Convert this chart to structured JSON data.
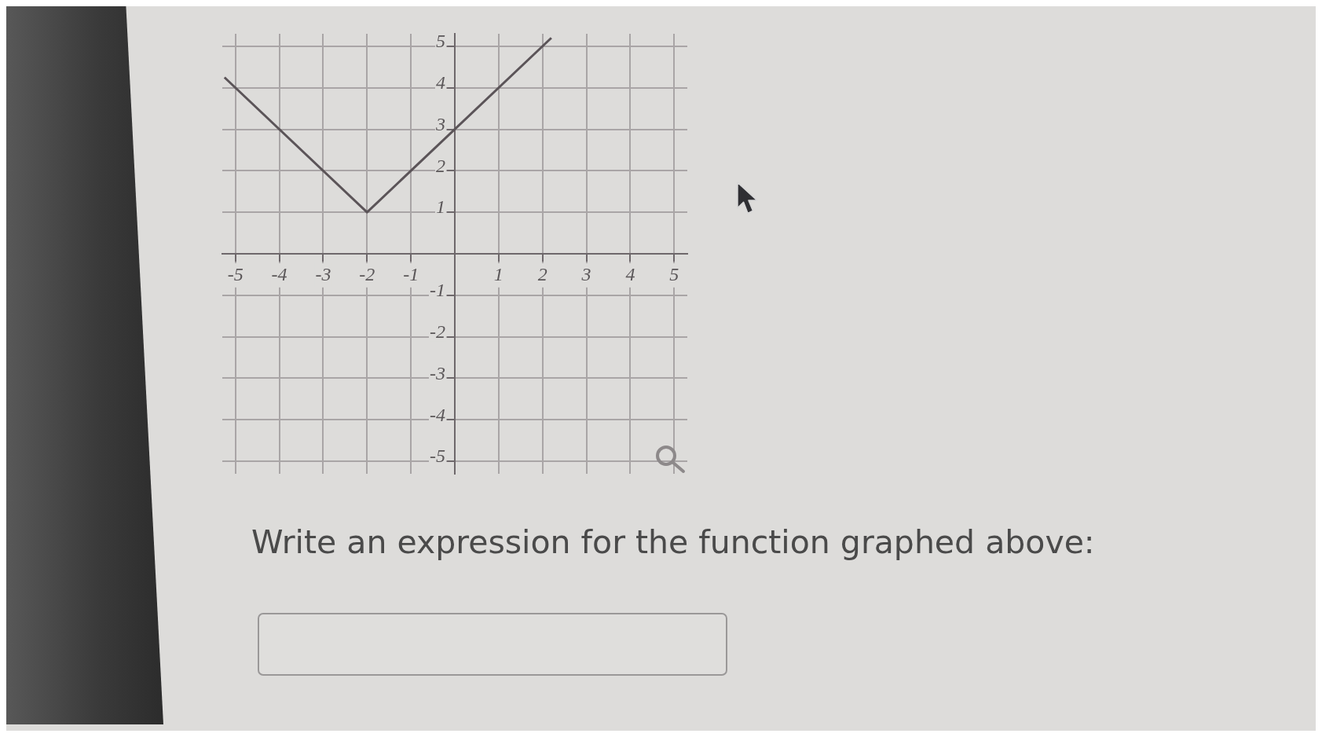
{
  "chart_data": {
    "type": "line",
    "x": [
      -5.25,
      -2,
      2.2
    ],
    "values": [
      4.25,
      1,
      5.2
    ],
    "color": "#5b5458",
    "xlim": [
      -5.3,
      5.3
    ],
    "ylim": [
      -5.3,
      5.3
    ],
    "xticks": [
      -5,
      -4,
      -3,
      -2,
      -1,
      1,
      2,
      3,
      4,
      5
    ],
    "yticks": [
      -5,
      -4,
      -3,
      -2,
      -1,
      1,
      2,
      3,
      4,
      5
    ],
    "grid": true,
    "annotations": [
      "Write an expression for the function graphed above:"
    ]
  }
}
